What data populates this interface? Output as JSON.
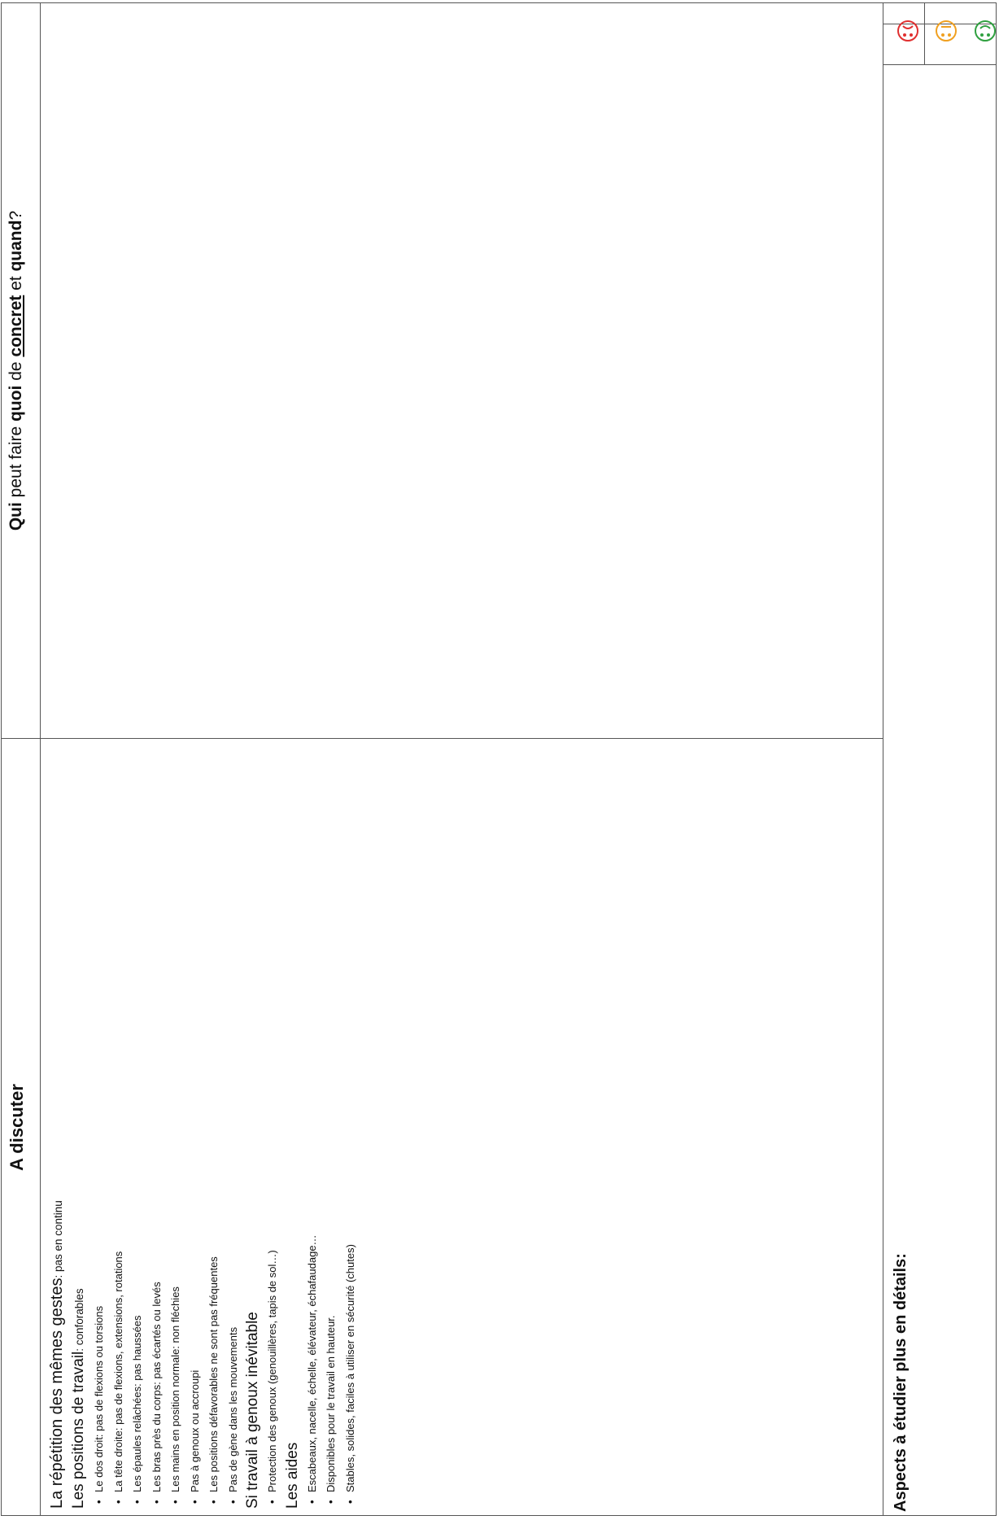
{
  "header": {
    "left": "A discuter",
    "right_parts": [
      {
        "text": "Qui",
        "bold": true,
        "underline": false
      },
      {
        "text": " peut faire ",
        "bold": false,
        "underline": false
      },
      {
        "text": "quoi",
        "bold": true,
        "underline": false
      },
      {
        "text": " de ",
        "bold": false,
        "underline": false
      },
      {
        "text": "concret",
        "bold": true,
        "underline": true
      },
      {
        "text": " et ",
        "bold": false,
        "underline": false
      },
      {
        "text": "quand",
        "bold": true,
        "underline": false
      },
      {
        "text": "?",
        "bold": false,
        "underline": false
      }
    ]
  },
  "sections": [
    {
      "title": "La répétition des mêmes gestes",
      "note": ": pas en continu",
      "style": "h1",
      "items": []
    },
    {
      "title": "Les positions de travail",
      "note": ": conforables",
      "style": "h2",
      "items": [
        "Le dos droit: pas de flexions ou torsions",
        "La tête droite: pas de flexions, extensions, rotations",
        "Les épaules relâchées: pas haussées",
        "Les bras près du corps: pas écartés ou levés",
        "Les mains en position normale: non fléchies",
        "Pas à genoux ou accroupi",
        "Les positions défavorables ne sont pas fréquentes",
        "Pas de gène dans les mouvements"
      ]
    },
    {
      "title": "Si travail à genoux inévitable",
      "note": "",
      "style": "h2",
      "items": [
        "Protection des genoux (genouillères, tapis de sol…)"
      ]
    },
    {
      "title": "Les aides",
      "note": "",
      "style": "h2",
      "items": [
        "Escabeaux, nacelle, échelle, élévateur, échafaudage…",
        "Disponibles pour le travail en hauteur.",
        "Stables, solides, faciles à utiliser en sécurité (chutes)"
      ]
    }
  ],
  "bullet_symbol": "•",
  "footer": {
    "aspects_label": "Aspects à étudier plus en détails:"
  },
  "rating_icons": [
    {
      "name": "sad-face-icon",
      "color": "#e03030"
    },
    {
      "name": "neutral-face-icon",
      "color": "#f0a020"
    },
    {
      "name": "happy-face-icon",
      "color": "#30a040"
    }
  ]
}
